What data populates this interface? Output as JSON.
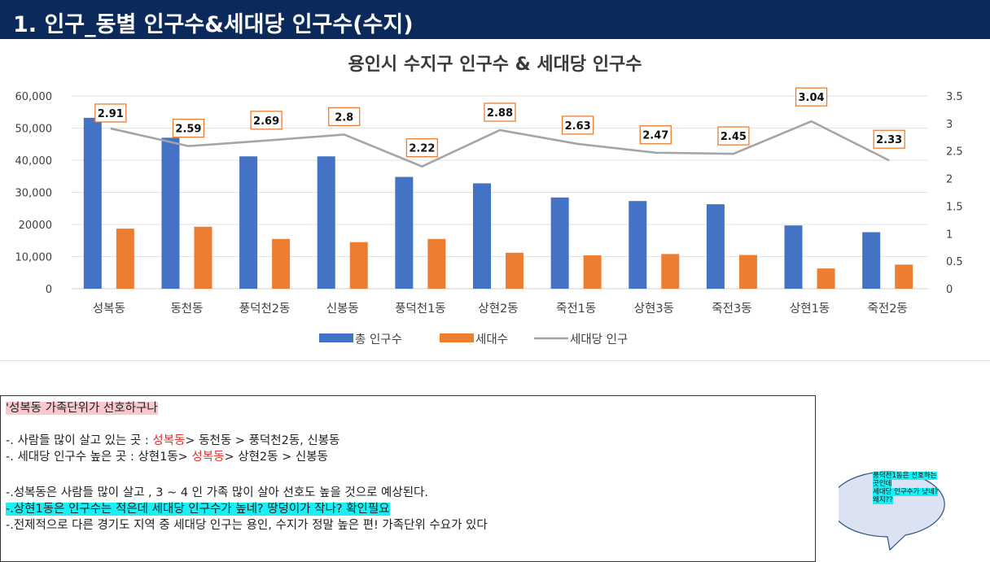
{
  "header": {
    "title": "1. 인구_동별 인구수&세대당 인구수(수지)"
  },
  "chart_data": {
    "type": "bar",
    "title": "용인시 수지구 인구수 & 세대당 인구수",
    "categories": [
      "성복동",
      "동천동",
      "풍덕천2동",
      "신봉동",
      "풍덕천1동",
      "상현2동",
      "죽전1동",
      "상현3동",
      "죽전3동",
      "상현1동",
      "죽전2동"
    ],
    "series": [
      {
        "name": "총 인구수",
        "type": "bar",
        "axis": "left",
        "color": "#4472c4",
        "values": [
          53200,
          47000,
          41200,
          41200,
          34800,
          32800,
          28400,
          27300,
          26300,
          19700,
          17600
        ]
      },
      {
        "name": "세대수",
        "type": "bar",
        "axis": "left",
        "color": "#ed7d31",
        "values": [
          18700,
          19300,
          15500,
          14500,
          15500,
          11200,
          10400,
          10800,
          10500,
          6300,
          7500
        ]
      },
      {
        "name": "세대당 인구",
        "type": "line",
        "axis": "right",
        "color": "#a5a5a5",
        "values": [
          2.91,
          2.59,
          2.69,
          2.8,
          2.22,
          2.88,
          2.63,
          2.47,
          2.45,
          3.04,
          2.33
        ]
      }
    ],
    "data_labels": [
      "2.91",
      "2.59",
      "2.69",
      "2.8",
      "2.22",
      "2.88",
      "2.63",
      "2.47",
      "2.45",
      "3.04",
      "2.33"
    ],
    "y_left": {
      "ylim": [
        0,
        60000
      ],
      "ticks": [
        0,
        10000,
        20000,
        30000,
        40000,
        50000,
        60000
      ],
      "tick_labels": [
        "0",
        "10,000",
        "20000",
        "30,000",
        "40,000",
        "50,000",
        "60,000"
      ]
    },
    "y_right": {
      "ylim": [
        0,
        3.5
      ],
      "ticks": [
        0,
        0.5,
        1,
        1.5,
        2,
        2.5,
        3,
        3.5
      ],
      "tick_labels": [
        "0",
        "0.5",
        "1",
        "1.5",
        "2",
        "2.5",
        "3",
        "3.5"
      ]
    },
    "grid": true,
    "legend_position": "bottom"
  },
  "notes": {
    "l1": "'성복동 가족단위가 선호하구나",
    "l2_pre": "-. 사람들 많이 살고 있는 곳 : ",
    "l2_red": "성복동",
    "l2_post": ">    동천동    >    풍덕천2동,     신봉동",
    "l3_pre": "-. 세대당 인구수 높은 곳 : 상현1동> ",
    "l3_red": "성복동",
    "l3_post": "> 상현2동 > 신봉동",
    "l4": "-.성복동은 사람들 많이 살고 ,  3 ~ 4 인 가족 많이 살아 선호도 높을 것으로 예상된다.",
    "l5": "-.상현1동은 인구수는 적은데 세대당 인구수가 높네? 땅덩이가 작나? 확인필요",
    "l6": "-.전제적으로 다른 경기도 지역 중 세대당 인구는 용인, 수지가 정말 높은 편! 가족단위 수요가 있다"
  },
  "bubble": {
    "line1": "풍덕천1동은 선호하는",
    "line2": "곳인데",
    "line3": "세대당 인구수가 낮네?",
    "line4": "왜지??"
  }
}
